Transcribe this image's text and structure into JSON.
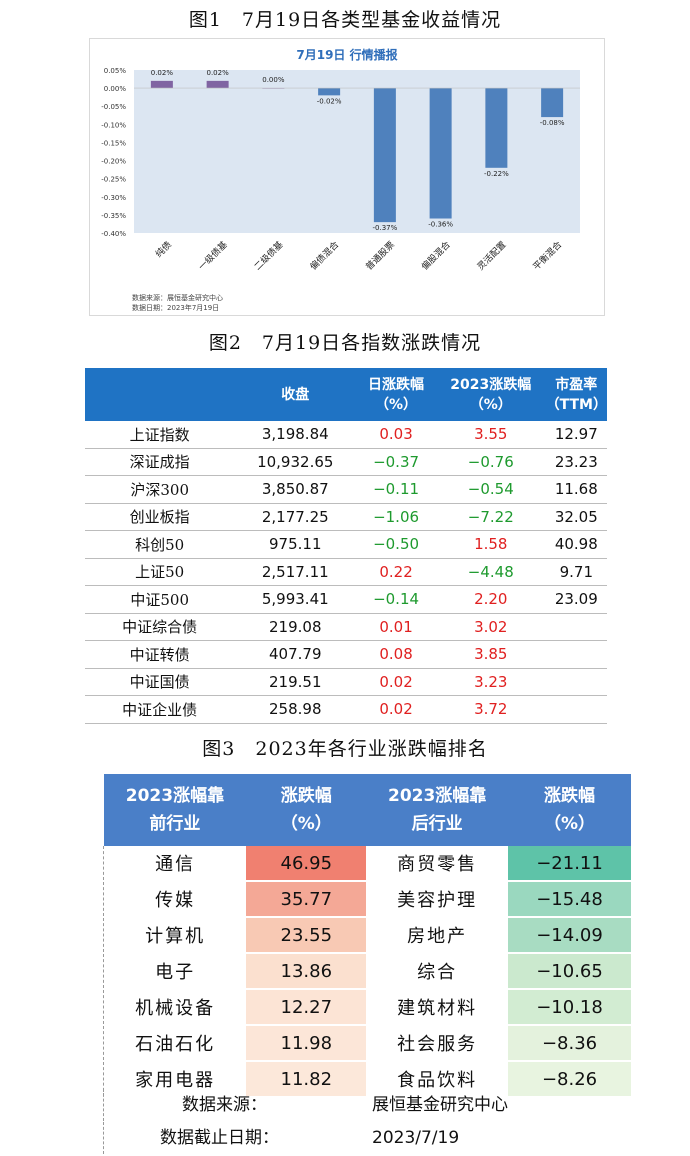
{
  "figure1": {
    "caption": "图1　7月19日各类型基金收益情况",
    "chart_data": {
      "type": "bar",
      "title": "7月19日  行情播报",
      "categories": [
        "纯债",
        "一级债基",
        "二级债基",
        "偏债混合",
        "普通股票",
        "偏股混合",
        "灵活配置",
        "平衡混合"
      ],
      "values": [
        0.02,
        0.02,
        0.0,
        -0.02,
        -0.37,
        -0.36,
        -0.22,
        -0.08
      ],
      "value_labels": [
        "0.02%",
        "0.02%",
        "0.00%",
        "-0.02%",
        "-0.37%",
        "-0.36%",
        "-0.22%",
        "-0.08%"
      ],
      "ylim": [
        -0.4,
        0.05
      ],
      "yticks": [
        "0.05%",
        "0.00%",
        "-0.05%",
        "-0.10%",
        "-0.15%",
        "-0.20%",
        "-0.25%",
        "-0.30%",
        "-0.35%",
        "-0.40%"
      ],
      "colors": {
        "positive": "#8064a2",
        "negative": "#4f81bd",
        "plot_bg": "#dce6f2",
        "title": "#2f6eba"
      }
    },
    "source": "数据来源：展恒基金研究中心",
    "date": "数据日期：2023年7月19日"
  },
  "figure2": {
    "caption": "图2　7月19日各指数涨跌情况",
    "headers": [
      "",
      "收盘",
      "日涨跌幅\n（%）",
      "2023涨跌幅\n（%）",
      "市盈率\n（TTM）"
    ],
    "rows": [
      {
        "name": "上证指数",
        "close": "3,198.84",
        "day": "0.03",
        "day_dir": "up",
        "ytd": "3.55",
        "ytd_dir": "up",
        "pe": "12.97"
      },
      {
        "name": "深证成指",
        "close": "10,932.65",
        "day": "−0.37",
        "day_dir": "down",
        "ytd": "−0.76",
        "ytd_dir": "down",
        "pe": "23.23"
      },
      {
        "name": "沪深300",
        "close": "3,850.87",
        "day": "−0.11",
        "day_dir": "down",
        "ytd": "−0.54",
        "ytd_dir": "down",
        "pe": "11.68"
      },
      {
        "name": "创业板指",
        "close": "2,177.25",
        "day": "−1.06",
        "day_dir": "down",
        "ytd": "−7.22",
        "ytd_dir": "down",
        "pe": "32.05"
      },
      {
        "name": "科创50",
        "close": "975.11",
        "day": "−0.50",
        "day_dir": "down",
        "ytd": "1.58",
        "ytd_dir": "up",
        "pe": "40.98"
      },
      {
        "name": "上证50",
        "close": "2,517.11",
        "day": "0.22",
        "day_dir": "up",
        "ytd": "−4.48",
        "ytd_dir": "down",
        "pe": "9.71"
      },
      {
        "name": "中证500",
        "close": "5,993.41",
        "day": "−0.14",
        "day_dir": "down",
        "ytd": "2.20",
        "ytd_dir": "up",
        "pe": "23.09"
      },
      {
        "name": "中证综合债",
        "close": "219.08",
        "day": "0.01",
        "day_dir": "up",
        "ytd": "3.02",
        "ytd_dir": "up",
        "pe": ""
      },
      {
        "name": "中证转债",
        "close": "407.79",
        "day": "0.08",
        "day_dir": "up",
        "ytd": "3.85",
        "ytd_dir": "up",
        "pe": ""
      },
      {
        "name": "中证国债",
        "close": "219.51",
        "day": "0.02",
        "day_dir": "up",
        "ytd": "3.23",
        "ytd_dir": "up",
        "pe": ""
      },
      {
        "name": "中证企业债",
        "close": "258.98",
        "day": "0.02",
        "day_dir": "up",
        "ytd": "3.72",
        "ytd_dir": "up",
        "pe": ""
      }
    ],
    "colors": {
      "header_bg": "#1f73c4",
      "up": "#e02020",
      "down": "#1e9a2e"
    }
  },
  "figure3": {
    "caption": "图3　2023年各行业涨跌幅排名",
    "headers": [
      "2023涨幅靠\n前行业",
      "涨跌幅\n（%）",
      "2023涨幅靠\n后行业",
      "涨跌幅\n（%）"
    ],
    "rows": [
      {
        "top": "通信",
        "top_val": "46.95",
        "top_color": "#f08070",
        "bottom": "商贸零售",
        "bottom_val": "−21.11",
        "bottom_color": "#5ec3a8"
      },
      {
        "top": "传媒",
        "top_val": "35.77",
        "top_color": "#f4a896",
        "bottom": "美容护理",
        "bottom_val": "−15.48",
        "bottom_color": "#9ad8bf"
      },
      {
        "top": "计算机",
        "top_val": "23.55",
        "top_color": "#f8c9b4",
        "bottom": "房地产",
        "bottom_val": "−14.09",
        "bottom_color": "#a8dcc2"
      },
      {
        "top": "电子",
        "top_val": "13.86",
        "top_color": "#fbe0cf",
        "bottom": "综合",
        "bottom_val": "−10.65",
        "bottom_color": "#cbe9ce"
      },
      {
        "top": "机械设备",
        "top_val": "12.27",
        "top_color": "#fce4d5",
        "bottom": "建筑材料",
        "bottom_val": "−10.18",
        "bottom_color": "#d2ecd2"
      },
      {
        "top": "石油石化",
        "top_val": "11.98",
        "top_color": "#fce6d8",
        "bottom": "社会服务",
        "bottom_val": "−8.36",
        "bottom_color": "#e4f2dd"
      },
      {
        "top": "家用电器",
        "top_val": "11.82",
        "top_color": "#fce8da",
        "bottom": "食品饮料",
        "bottom_val": "−8.26",
        "bottom_color": "#e8f4e0"
      }
    ],
    "source_label": "数据来源：",
    "source_value": "展恒基金研究中心",
    "date_label": "数据截止日期：",
    "date_value": "2023/7/19",
    "colors": {
      "header_bg": "#4a7fc8"
    }
  }
}
